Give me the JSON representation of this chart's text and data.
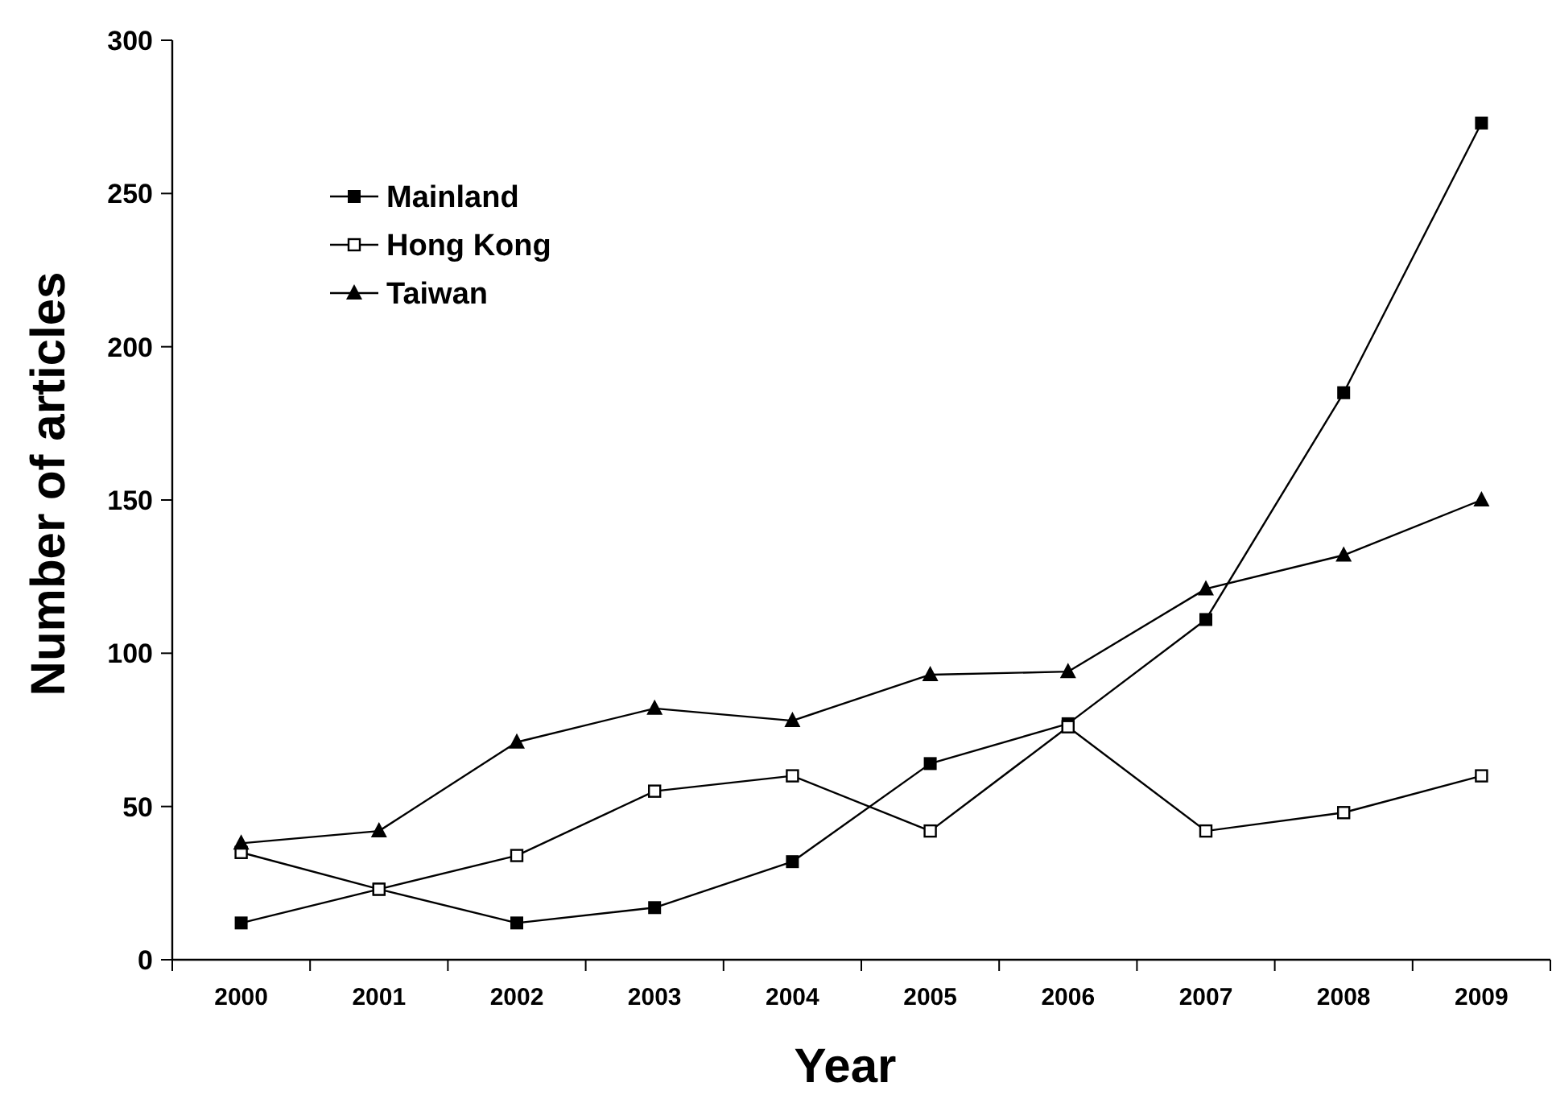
{
  "chart_data": {
    "type": "line",
    "xlabel": "Year",
    "ylabel": "Number of articles",
    "categories": [
      "2000",
      "2001",
      "2002",
      "2003",
      "2004",
      "2005",
      "2006",
      "2007",
      "2008",
      "2009"
    ],
    "ylim": [
      0,
      300
    ],
    "yticks": [
      0,
      50,
      100,
      150,
      200,
      250,
      300
    ],
    "grid": false,
    "legend": "top left",
    "line_style": "solid",
    "series": [
      {
        "name": "Mainland",
        "color": "#000000",
        "marker": "square",
        "values": [
          12,
          23,
          12,
          17,
          32,
          64,
          77,
          111,
          185,
          273
        ]
      },
      {
        "name": "Hong Kong",
        "color": "#000000",
        "marker": "square-open",
        "values": [
          35,
          23,
          34,
          55,
          60,
          42,
          76,
          42,
          48,
          60
        ]
      },
      {
        "name": "Taiwan",
        "color": "#000000",
        "marker": "triangle",
        "values": [
          38,
          42,
          71,
          82,
          78,
          93,
          94,
          121,
          132,
          150
        ]
      }
    ]
  }
}
